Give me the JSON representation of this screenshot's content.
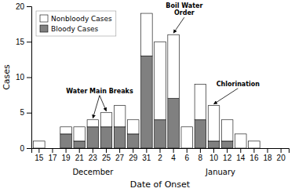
{
  "chart_data": {
    "type": "bar",
    "stacked": true,
    "categories": [
      "15",
      "17",
      "19",
      "21",
      "23",
      "25",
      "27",
      "29",
      "31",
      "2",
      "4",
      "6",
      "8",
      "10",
      "12",
      "14",
      "16",
      "18",
      "20"
    ],
    "series": [
      {
        "name": "Bloody Cases",
        "color": "#808080",
        "values": [
          0,
          0,
          2,
          1,
          3,
          3,
          3,
          2,
          13,
          4,
          7,
          0,
          4,
          1,
          1,
          0,
          0,
          0,
          0
        ]
      },
      {
        "name": "Nonbloody Cases",
        "color": "#ffffff",
        "values": [
          1,
          0,
          1,
          2,
          1,
          2,
          3,
          2,
          6,
          11,
          9,
          3,
          5,
          5,
          3,
          2,
          1,
          0,
          0
        ]
      }
    ],
    "ylim": [
      0,
      20
    ],
    "yticks": [
      0,
      5,
      10,
      15,
      20
    ],
    "ylabel": "Cases",
    "xlabel": "Date of Onset",
    "x_groups": [
      {
        "label": "December",
        "from": "15",
        "to": "31"
      },
      {
        "label": "January",
        "from": "2",
        "to": "20"
      }
    ],
    "annotations": [
      {
        "text": "Water Main Breaks",
        "x": [
          "23",
          "25"
        ]
      },
      {
        "text": "Boil Water\nOrder",
        "x": [
          "4"
        ]
      },
      {
        "text": "Chlorination",
        "x": [
          "10"
        ]
      }
    ],
    "legend": "upper left",
    "grid": false
  }
}
